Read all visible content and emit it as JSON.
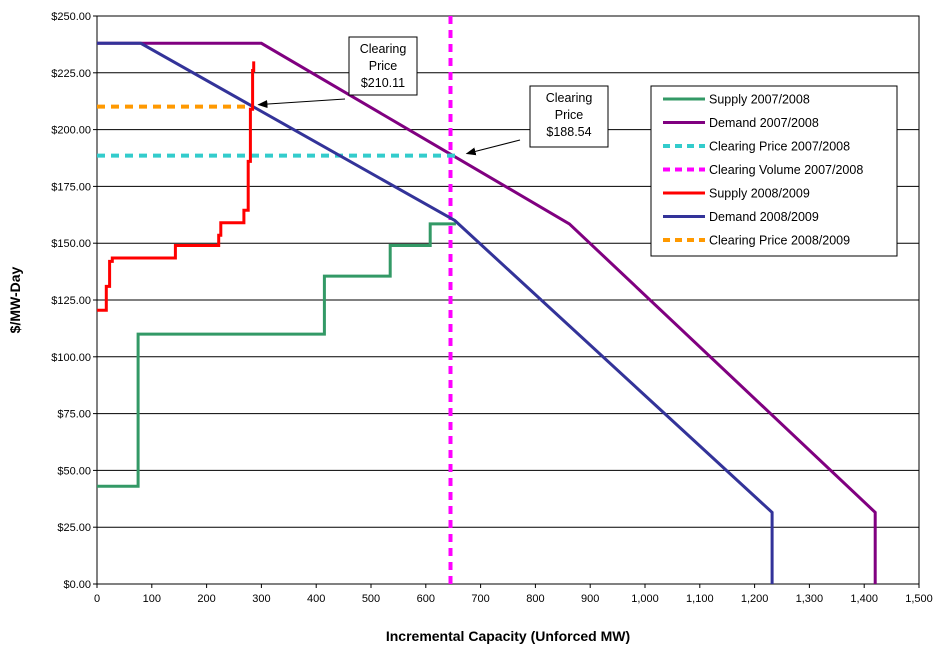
{
  "chart_data": {
    "type": "line",
    "xlabel": "Incremental Capacity (Unforced MW)",
    "ylabel": "$/MW-Day",
    "xlim": [
      0,
      1500
    ],
    "ylim": [
      0,
      250
    ],
    "x_ticks": [
      0,
      100,
      200,
      300,
      400,
      500,
      600,
      700,
      800,
      900,
      1000,
      1100,
      1200,
      1300,
      1400,
      1500
    ],
    "x_tick_labels": [
      "0",
      "100",
      "200",
      "300",
      "400",
      "500",
      "600",
      "700",
      "800",
      "900",
      "1,000",
      "1,100",
      "1,200",
      "1,300",
      "1,400",
      "1,500"
    ],
    "y_ticks": [
      0,
      25,
      50,
      75,
      100,
      125,
      150,
      175,
      200,
      225,
      250
    ],
    "y_tick_labels": [
      "$0.00",
      "$25.00",
      "$50.00",
      "$75.00",
      "$100.00",
      "$125.00",
      "$150.00",
      "$175.00",
      "$200.00",
      "$225.00",
      "$250.00"
    ],
    "grid": "horizontal",
    "legend_position": "right",
    "series": [
      {
        "name": "Supply 2007/2008",
        "color": "#339966",
        "style": "solid",
        "points": [
          [
            0,
            43
          ],
          [
            75,
            43
          ],
          [
            75,
            110
          ],
          [
            415,
            110
          ],
          [
            415,
            135.5
          ],
          [
            535,
            135.5
          ],
          [
            535,
            149
          ],
          [
            608,
            149
          ],
          [
            608,
            158.5
          ],
          [
            655,
            158.5
          ]
        ]
      },
      {
        "name": "Demand 2007/2008",
        "color": "#800080",
        "style": "solid",
        "points": [
          [
            0,
            238
          ],
          [
            300,
            238
          ],
          [
            862,
            158.5
          ],
          [
            1420,
            31.5
          ],
          [
            1420,
            0
          ]
        ]
      },
      {
        "name": "Clearing Price 2007/2008",
        "color": "#33CCCC",
        "style": "dashed",
        "points": [
          [
            0,
            188.54
          ],
          [
            655,
            188.54
          ]
        ]
      },
      {
        "name": "Clearing Volume 2007/2008",
        "color": "#FF00FF",
        "style": "dashed",
        "points": [
          [
            645,
            0
          ],
          [
            645,
            250
          ]
        ]
      },
      {
        "name": "Supply 2008/2009",
        "color": "#FF0000",
        "style": "solid",
        "points": [
          [
            0,
            120.5
          ],
          [
            17,
            120.5
          ],
          [
            17,
            131
          ],
          [
            23,
            131
          ],
          [
            23,
            142
          ],
          [
            28,
            142
          ],
          [
            28,
            143.5
          ],
          [
            143,
            143.5
          ],
          [
            143,
            149
          ],
          [
            222,
            149
          ],
          [
            222,
            153.5
          ],
          [
            226,
            153.5
          ],
          [
            226,
            159
          ],
          [
            268,
            159
          ],
          [
            268,
            164.5
          ],
          [
            276,
            164.5
          ],
          [
            276,
            186
          ],
          [
            280,
            186
          ],
          [
            280,
            209
          ],
          [
            284,
            209
          ],
          [
            284,
            226
          ],
          [
            286,
            226
          ],
          [
            286,
            230
          ]
        ]
      },
      {
        "name": "Demand 2008/2009",
        "color": "#333399",
        "style": "solid",
        "points": [
          [
            0,
            238
          ],
          [
            80,
            238
          ],
          [
            653,
            160
          ],
          [
            1232,
            31.5
          ],
          [
            1232,
            0
          ]
        ]
      },
      {
        "name": "Clearing Price 2008/2009",
        "color": "#FF9900",
        "style": "dashed",
        "points": [
          [
            0,
            210.11
          ],
          [
            280,
            210.11
          ]
        ]
      }
    ],
    "annotations": [
      {
        "text": [
          "Clearing",
          "Price",
          "$210.11"
        ],
        "points_to": [
          280,
          210.11
        ]
      },
      {
        "text": [
          "Clearing",
          "Price",
          "$188.54"
        ],
        "points_to": [
          660,
          188.54
        ]
      }
    ]
  }
}
